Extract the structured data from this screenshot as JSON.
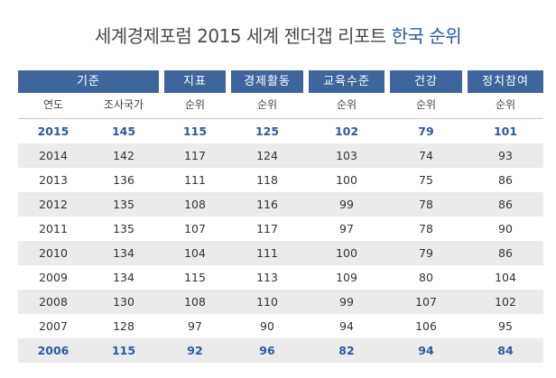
{
  "title": {
    "main": "세계경제포럼 2015 세계 젠더갭 리포트 ",
    "accent": "한국 순위"
  },
  "headers": [
    "기준",
    "지표",
    "경제활동",
    "교육수준",
    "건강",
    "정치참여"
  ],
  "subheaders": [
    "연도",
    "조사국가",
    "순위",
    "순위",
    "순위",
    "순위",
    "순위"
  ],
  "rows": [
    {
      "year": "2015",
      "countries": "145",
      "index": "115",
      "economy": "125",
      "education": "102",
      "health": "79",
      "politics": "101",
      "highlight": true
    },
    {
      "year": "2014",
      "countries": "142",
      "index": "117",
      "economy": "124",
      "education": "103",
      "health": "74",
      "politics": "93",
      "highlight": false
    },
    {
      "year": "2013",
      "countries": "136",
      "index": "111",
      "economy": "118",
      "education": "100",
      "health": "75",
      "politics": "86",
      "highlight": false
    },
    {
      "year": "2012",
      "countries": "135",
      "index": "108",
      "economy": "116",
      "education": "99",
      "health": "78",
      "politics": "86",
      "highlight": false
    },
    {
      "year": "2011",
      "countries": "135",
      "index": "107",
      "economy": "117",
      "education": "97",
      "health": "78",
      "politics": "90",
      "highlight": false
    },
    {
      "year": "2010",
      "countries": "134",
      "index": "104",
      "economy": "111",
      "education": "100",
      "health": "79",
      "politics": "86",
      "highlight": false
    },
    {
      "year": "2009",
      "countries": "134",
      "index": "115",
      "economy": "113",
      "education": "109",
      "health": "80",
      "politics": "104",
      "highlight": false
    },
    {
      "year": "2008",
      "countries": "130",
      "index": "108",
      "economy": "110",
      "education": "99",
      "health": "107",
      "politics": "102",
      "highlight": false
    },
    {
      "year": "2007",
      "countries": "128",
      "index": "97",
      "economy": "90",
      "education": "94",
      "health": "106",
      "politics": "95",
      "highlight": false
    },
    {
      "year": "2006",
      "countries": "115",
      "index": "92",
      "economy": "96",
      "education": "82",
      "health": "94",
      "politics": "84",
      "highlight": true
    }
  ],
  "colors": {
    "header_bg": "#3e659c",
    "accent_text": "#2a5aa0",
    "stripe": "#ebebeb"
  }
}
